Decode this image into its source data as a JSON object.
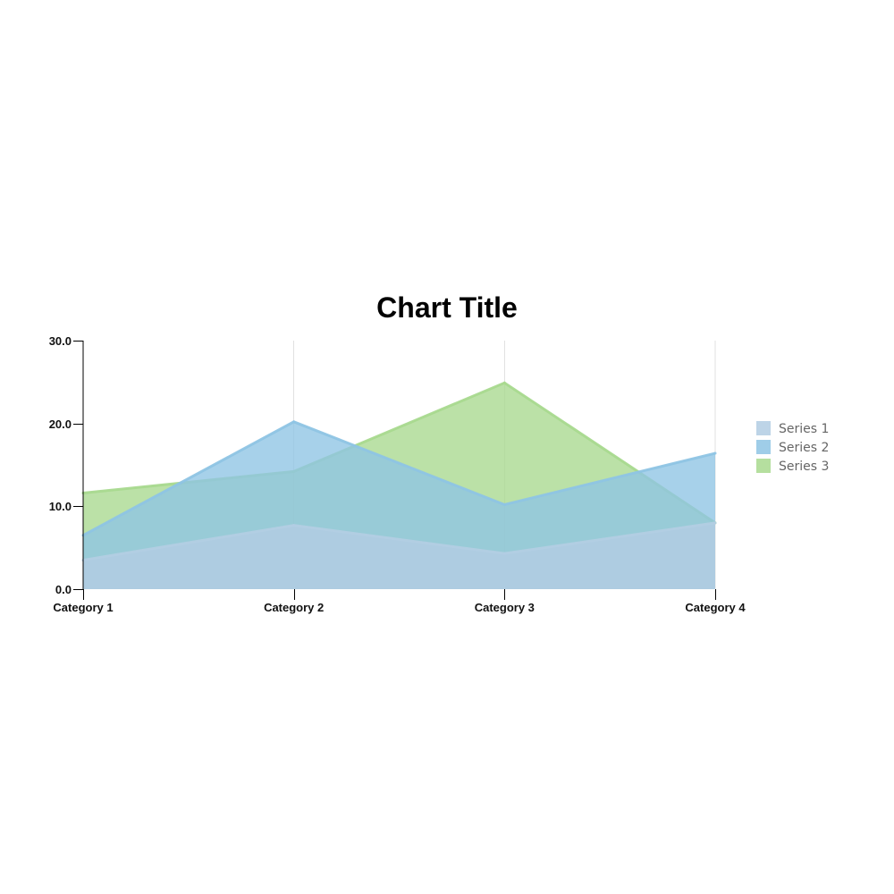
{
  "chart_data": {
    "type": "area",
    "title": "Chart Title",
    "xlabel": "",
    "ylabel": "",
    "categories": [
      "Category 1",
      "Category 2",
      "Category 3",
      "Category 4"
    ],
    "ylim": [
      0,
      30
    ],
    "yticks": [
      0,
      10,
      20,
      30
    ],
    "ytick_labels": [
      "0.0",
      "10.0",
      "20.0",
      "30.0"
    ],
    "series": [
      {
        "name": "Series 1",
        "values": [
          3.5,
          7.7,
          4.3,
          8.0
        ],
        "color": "#b2cde3"
      },
      {
        "name": "Series 2",
        "values": [
          6.5,
          20.2,
          10.2,
          16.4
        ],
        "color": "#8ec4e4"
      },
      {
        "name": "Series 3",
        "values": [
          11.6,
          14.2,
          24.9,
          8.0
        ],
        "color": "#a8d98e"
      }
    ],
    "legend": {
      "placement": "right",
      "entries": [
        "Series 1",
        "Series 2",
        "Series 3"
      ]
    },
    "grid": false
  }
}
